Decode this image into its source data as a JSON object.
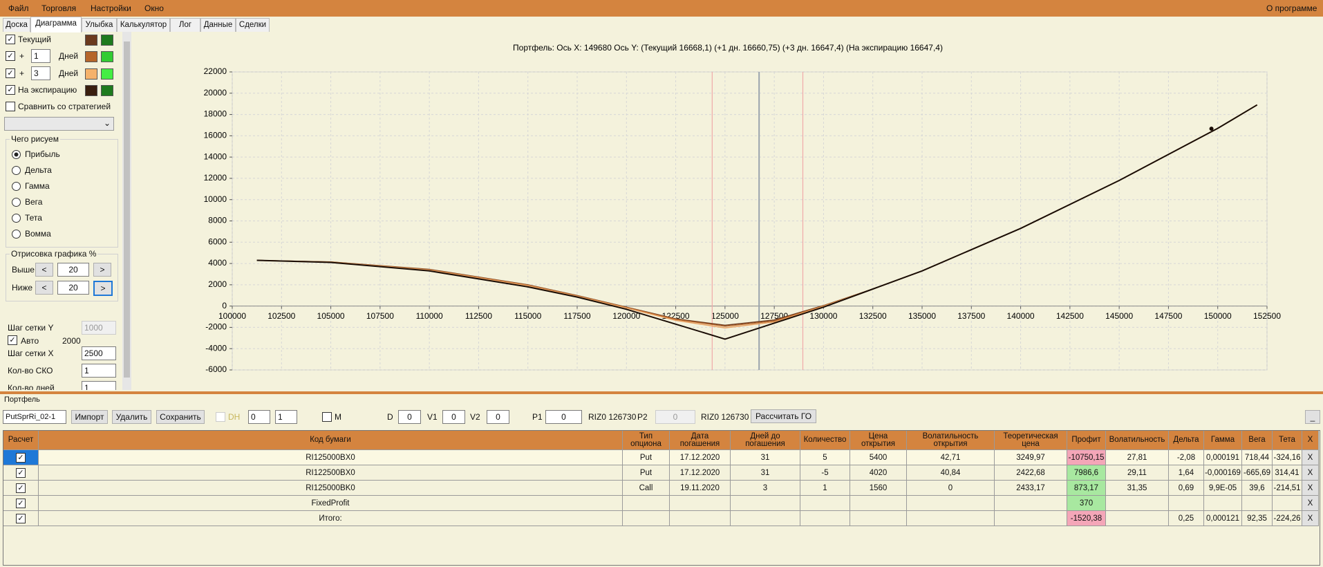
{
  "menu": {
    "items": [
      "Файл",
      "Торговля",
      "Настройки",
      "Окно"
    ],
    "about": "О программе"
  },
  "tabs": [
    "Доска",
    "Диаграмма",
    "Улыбка",
    "Калькулятор",
    "Лог",
    "Данные",
    "Сделки"
  ],
  "left_panel": {
    "curve_rows": [
      {
        "label": "Текущий"
      },
      {
        "prefix": "+",
        "days": "1",
        "unit": "Дней"
      },
      {
        "prefix": "+",
        "days": "3",
        "unit": "Дней"
      },
      {
        "label": "На экспирацию"
      }
    ],
    "compare": "Сравнить со стратегией",
    "draw_group": {
      "title": "Чего рисуем",
      "options": [
        "Прибыль",
        "Дельта",
        "Гамма",
        "Вега",
        "Тета",
        "Вомма"
      ]
    },
    "range_group": {
      "title": "Отрисовка графика %",
      "rows": [
        {
          "label": "Выше",
          "dec": "<",
          "value": "20",
          "inc": ">"
        },
        {
          "label": "Ниже",
          "dec": "<",
          "value": "20",
          "inc": ">"
        }
      ]
    },
    "grid_y": {
      "label": "Шаг сетки Y",
      "value": "1000"
    },
    "auto": {
      "label": "Авто",
      "value": "2000"
    },
    "grid_x": {
      "label": "Шаг сетки X",
      "value": "2500"
    },
    "sko": {
      "label": "Кол-во СКО",
      "value": "1"
    },
    "days": {
      "label": "Кол-во дней",
      "value": "1"
    }
  },
  "portfolio": {
    "title": "Портфель",
    "toolbar": {
      "select": "PutSprRi_02-1",
      "import": "Импорт",
      "delete": "Удалить",
      "save": "Сохранить",
      "dh": "DH",
      "dh_spin_1": "0",
      "dh_spin_2": "1",
      "m": "M",
      "d_label": "D",
      "d_value": "0",
      "v1_label": "V1",
      "v1_value": "0",
      "v2_label": "V2",
      "v2_value": "0",
      "p1_label": "P1",
      "p1_value": "0",
      "p1_price": "RIZ0 126730",
      "p2_label": "P2",
      "p2_value": "0",
      "p2_price": "RIZ0 126730",
      "calc": "Рассчитать ГО",
      "minimize": "_"
    },
    "table": {
      "header": [
        "Расчет",
        "Код бумаги",
        "Тип опциона",
        "Дата погашения",
        "Дней до погашения",
        "Количество",
        "Цена открытия",
        "Волатильность открытия",
        "Теоретическая цена",
        "Профит",
        "Волатильность",
        "Дельта",
        "Гамма",
        "Вега",
        "Тета",
        "X"
      ],
      "rows": [
        [
          null,
          "RI125000BX0",
          "Put",
          "17.12.2020",
          "31",
          "5",
          "5400",
          "42,71",
          "3249,97",
          "-10750,15",
          "27,81",
          "-2,08",
          "0,000191",
          "718,44",
          "-324,16",
          "X"
        ],
        [
          null,
          "RI122500BX0",
          "Put",
          "17.12.2020",
          "31",
          "-5",
          "4020",
          "40,84",
          "2422,68",
          "7986,6",
          "29,11",
          "1,64",
          "-0,000169",
          "-665,69",
          "314,41",
          "X"
        ],
        [
          null,
          "RI125000BK0",
          "Call",
          "19.11.2020",
          "3",
          "1",
          "1560",
          "0",
          "2433,17",
          "873,17",
          "31,35",
          "0,69",
          "9,9E-05",
          "39,6",
          "-214,51",
          "X"
        ],
        [
          null,
          "FixedProfit",
          null,
          null,
          null,
          null,
          null,
          null,
          null,
          "370",
          null,
          null,
          null,
          null,
          null,
          "X"
        ],
        [
          null,
          "Итого:",
          null,
          null,
          null,
          null,
          null,
          null,
          null,
          "-1520,38",
          null,
          "0,25",
          "0,000121",
          "92,35",
          "-224,26",
          "X"
        ]
      ]
    }
  },
  "chart_data": {
    "type": "line",
    "title": "Портфель: Ось X: 149680 Ось Y:  (Текущий 16668,1)  (+1 дн. 16660,75)  (+3 дн. 16647,4)  (На экспирацию 16647,4)",
    "x": [
      101250,
      105000,
      110000,
      115000,
      117500,
      120000,
      122500,
      125000,
      127500,
      130000,
      132500,
      135000,
      140000,
      145000,
      150000,
      152000
    ],
    "series": [
      {
        "color": "#6b3a1e",
        "values": [
          4300,
          4150,
          3450,
          2000,
          1000,
          -100,
          -1200,
          -1800,
          -1300,
          50,
          1600,
          3300,
          7300,
          11800,
          16700,
          18900
        ]
      },
      {
        "color": "#b5652a",
        "values": [
          4300,
          4140,
          3420,
          1970,
          970,
          -130,
          -1250,
          -1900,
          -1400,
          20,
          1600,
          3300,
          7300,
          11800,
          16700,
          18900
        ]
      },
      {
        "color": "#e8a060",
        "values": [
          4300,
          4120,
          3380,
          1920,
          920,
          -180,
          -1350,
          -2050,
          -1500,
          -20,
          1600,
          3300,
          7300,
          11800,
          16700,
          18900
        ]
      },
      {
        "color": "#1a0d05",
        "values": [
          4300,
          4100,
          3300,
          1800,
          850,
          -300,
          -1700,
          -3100,
          -1600,
          -100,
          1600,
          3300,
          7300,
          11800,
          16700,
          18900
        ]
      }
    ],
    "marker": {
      "x": 149680,
      "y": 16668.1
    },
    "vlines": [
      {
        "x": 126730,
        "color": "#9aa4ad"
      },
      {
        "x": 124350,
        "color": "#f0a8a8"
      },
      {
        "x": 128950,
        "color": "#f0a8a8"
      }
    ],
    "xlim": [
      100000,
      152500
    ],
    "xticks": [
      100000,
      102500,
      105000,
      107500,
      110000,
      112500,
      115000,
      117500,
      120000,
      122500,
      125000,
      127500,
      130000,
      132500,
      135000,
      137500,
      140000,
      142500,
      145000,
      147500,
      150000,
      152500
    ],
    "ylim": [
      -6000,
      22000
    ],
    "yticks": [
      -6000,
      -4000,
      -2000,
      0,
      2000,
      4000,
      6000,
      8000,
      10000,
      12000,
      14000,
      16000,
      18000,
      20000,
      22000
    ],
    "grid": true
  }
}
